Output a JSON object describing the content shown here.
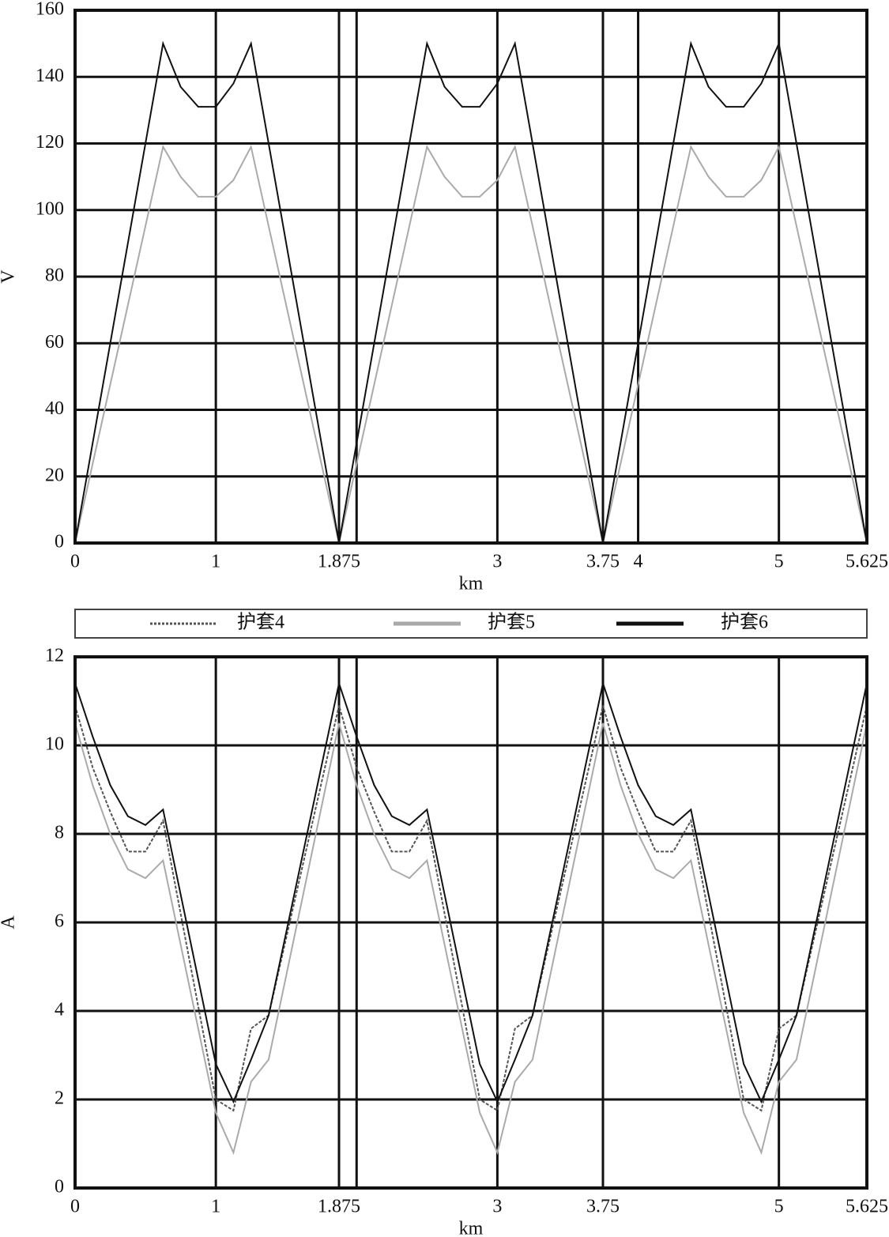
{
  "chart_data": [
    {
      "type": "line",
      "xlabel": "km",
      "ylabel": "V",
      "x": [
        0,
        0.625,
        0.75,
        0.875,
        1,
        1.125,
        1.25,
        1.875,
        2.5,
        2.625,
        2.75,
        2.875,
        3,
        3.125,
        3.75,
        4.375,
        4.5,
        4.625,
        4.75,
        4.875,
        5,
        5.625
      ],
      "series": [
        {
          "color": "#aaaaaa",
          "values": [
            0,
            119,
            110,
            104,
            104,
            109,
            119,
            0,
            119,
            110,
            104,
            104,
            109,
            119,
            0,
            119,
            110,
            104,
            104,
            109,
            119,
            0
          ]
        },
        {
          "color": "#111111",
          "values": [
            0,
            150,
            137,
            131,
            131,
            138,
            150,
            0,
            150,
            137,
            131,
            131,
            138,
            150,
            0,
            150,
            137,
            131,
            131,
            138,
            150,
            0
          ]
        }
      ],
      "xlim": [
        0,
        5.625
      ],
      "xticks": [
        0,
        1,
        1.875,
        {
          "value": 2,
          "label": null
        },
        3,
        3.75,
        4,
        5,
        5.625
      ],
      "ylim": [
        0,
        160
      ],
      "yticks": [
        0,
        20,
        40,
        60,
        80,
        100,
        120,
        140,
        160
      ],
      "grid": true
    },
    {
      "type": "line",
      "xlabel": "km",
      "ylabel": "A",
      "x": [
        0,
        0.125,
        0.25,
        0.375,
        0.5,
        0.625,
        1,
        1.125,
        1.25,
        1.375,
        1.875,
        2,
        2.125,
        2.25,
        2.375,
        2.5,
        2.875,
        3,
        3.125,
        3.25,
        3.75,
        3.875,
        4,
        4.125,
        4.25,
        4.375,
        4.75,
        4.875,
        5,
        5.125,
        5.625
      ],
      "series": [
        {
          "name": "护套4",
          "color": "#555555",
          "dashed": true,
          "values": [
            10.9,
            9.5,
            8.5,
            7.6,
            7.6,
            8.3,
            2.0,
            1.75,
            3.6,
            3.9,
            10.9,
            9.5,
            8.5,
            7.6,
            7.6,
            8.3,
            2.0,
            1.75,
            3.6,
            3.9,
            10.9,
            9.5,
            8.5,
            7.6,
            7.6,
            8.3,
            2.0,
            1.75,
            3.6,
            3.9,
            10.9
          ]
        },
        {
          "name": "护套5",
          "color": "#aaaaaa",
          "values": [
            10.5,
            9.1,
            8.0,
            7.2,
            7.0,
            7.4,
            1.7,
            0.8,
            2.4,
            2.9,
            10.5,
            9.1,
            8.0,
            7.2,
            7.0,
            7.4,
            1.7,
            0.8,
            2.4,
            2.9,
            10.5,
            9.1,
            8.0,
            7.2,
            7.0,
            7.4,
            1.7,
            0.8,
            2.4,
            2.9,
            10.5
          ]
        },
        {
          "name": "护套6",
          "color": "#111111",
          "values": [
            11.4,
            10.2,
            9.1,
            8.4,
            8.2,
            8.55,
            2.8,
            1.95,
            2.9,
            3.9,
            11.4,
            10.2,
            9.1,
            8.4,
            8.2,
            8.55,
            2.8,
            1.95,
            2.9,
            3.9,
            11.4,
            10.2,
            9.1,
            8.4,
            8.2,
            8.55,
            2.8,
            1.95,
            2.9,
            3.9,
            11.4
          ]
        }
      ],
      "xlim": [
        0,
        5.625
      ],
      "xticks": [
        0,
        1,
        1.875,
        {
          "value": 2,
          "label": null
        },
        3,
        3.75,
        5,
        5.625
      ],
      "ylim": [
        0,
        12
      ],
      "yticks": [
        0,
        2,
        4,
        6,
        8,
        10,
        12
      ],
      "grid": true
    }
  ]
}
